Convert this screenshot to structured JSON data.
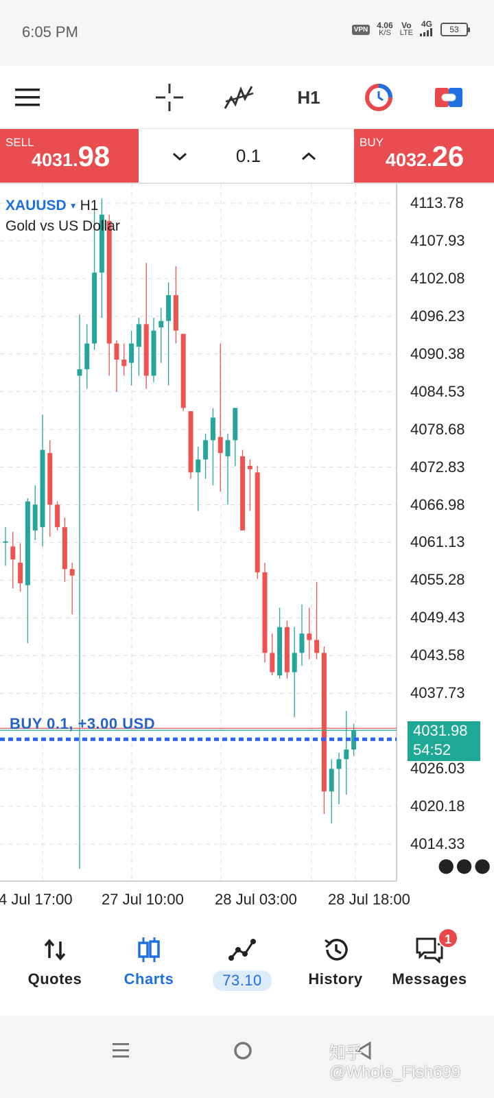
{
  "status_bar": {
    "time": "6:05 PM",
    "vpn": "VPN",
    "speed_value": "4.06",
    "speed_unit": "K/S",
    "network_a": "Vo",
    "network_a_sub": "LTE",
    "network_b": "4G",
    "battery": "53"
  },
  "toolbar": {
    "menu_icon": "hamburger-menu-icon",
    "crosshair_icon": "crosshair-icon",
    "indicators_icon": "indicators-icon",
    "timeframe": "H1",
    "chart_style_icon": "chart-style-icon",
    "trade_toggle_icon": "one-click-trading-icon"
  },
  "trade_bar": {
    "sell_label": "SELL",
    "sell_price_main": "4031.",
    "sell_price_big": "98",
    "lot": "0.1",
    "buy_label": "BUY",
    "buy_price_main": "4032.",
    "buy_price_big": "26",
    "colors": {
      "sell": "#ea4d50",
      "buy": "#ea4d50"
    }
  },
  "chart": {
    "symbol": "XAUUSD",
    "timeframe": "H1",
    "description": "Gold vs US Dollar",
    "position_label": "BUY 0.1,  +3.00 USD",
    "current_price": "4031.98",
    "countdown": "54:52",
    "more_icon": "more-dots-icon"
  },
  "chart_data": {
    "type": "candlestick",
    "symbol": "XAUUSD",
    "timeframe": "H1",
    "y_ticks": [
      "4113.78",
      "4107.93",
      "4102.08",
      "4096.23",
      "4090.38",
      "4084.53",
      "4078.68",
      "4072.83",
      "4066.98",
      "4061.13",
      "4055.28",
      "4049.43",
      "4043.58",
      "4037.73",
      "4026.03",
      "4020.18",
      "4014.33"
    ],
    "x_ticks": [
      "4 Jul 17:00",
      "27 Jul 10:00",
      "28 Jul 03:00",
      "28 Jul 18:00"
    ],
    "ylim": [
      4011.4,
      4116.7
    ],
    "grid": true,
    "colors": {
      "up": "#26a69a",
      "down": "#ef5350",
      "grid": "#dcdcdc",
      "position_line": "#2962ff"
    },
    "current_price": 4031.98,
    "position_price": 4030.6,
    "candles": [
      {
        "o": 4061.3,
        "h": 4063.5,
        "l": 4057.5,
        "c": 4061.3
      },
      {
        "o": 4060.5,
        "h": 4062.8,
        "l": 4054.0,
        "c": 4058.5
      },
      {
        "o": 4058.0,
        "h": 4061.0,
        "l": 4053.5,
        "c": 4054.8
      },
      {
        "o": 4054.5,
        "h": 4068.0,
        "l": 4045.5,
        "c": 4067.5
      },
      {
        "o": 4063.0,
        "h": 4070.0,
        "l": 4061.5,
        "c": 4067.0
      },
      {
        "o": 4063.5,
        "h": 4081.0,
        "l": 4060.5,
        "c": 4075.5
      },
      {
        "o": 4075.0,
        "h": 4077.0,
        "l": 4062.0,
        "c": 4067.0
      },
      {
        "o": 4067.0,
        "h": 4067.5,
        "l": 4063.0,
        "c": 4063.5
      },
      {
        "o": 4063.5,
        "h": 4065.0,
        "l": 4055.0,
        "c": 4057.0
      },
      {
        "o": 4057.0,
        "h": 4058.0,
        "l": 4050.0,
        "c": 4056.0
      },
      {
        "o": 4087.0,
        "h": 4096.5,
        "l": 4010.5,
        "c": 4088.0
      },
      {
        "o": 4088.0,
        "h": 4095.0,
        "l": 4085.0,
        "c": 4092.0
      },
      {
        "o": 4092.0,
        "h": 4113.0,
        "l": 4091.0,
        "c": 4103.0
      },
      {
        "o": 4103.0,
        "h": 4114.5,
        "l": 4096.0,
        "c": 4112.0
      },
      {
        "o": 4111.0,
        "h": 4112.0,
        "l": 4087.0,
        "c": 4092.0
      },
      {
        "o": 4092.0,
        "h": 4092.5,
        "l": 4084.5,
        "c": 4089.5
      },
      {
        "o": 4089.5,
        "h": 4092.0,
        "l": 4087.0,
        "c": 4088.5
      },
      {
        "o": 4089.0,
        "h": 4094.0,
        "l": 4085.5,
        "c": 4092.0
      },
      {
        "o": 4091.5,
        "h": 4096.0,
        "l": 4087.0,
        "c": 4095.0
      },
      {
        "o": 4095.0,
        "h": 4104.5,
        "l": 4085.0,
        "c": 4087.0
      },
      {
        "o": 4087.0,
        "h": 4096.0,
        "l": 4086.0,
        "c": 4094.0
      },
      {
        "o": 4094.5,
        "h": 4097.5,
        "l": 4089.0,
        "c": 4095.5
      },
      {
        "o": 4095.5,
        "h": 4101.5,
        "l": 4085.5,
        "c": 4099.5
      },
      {
        "o": 4099.5,
        "h": 4104.0,
        "l": 4092.0,
        "c": 4094.0
      },
      {
        "o": 4093.5,
        "h": 4093.5,
        "l": 4081.5,
        "c": 4082.0
      },
      {
        "o": 4081.5,
        "h": 4081.5,
        "l": 4071.0,
        "c": 4072.0
      },
      {
        "o": 4072.0,
        "h": 4076.0,
        "l": 4066.0,
        "c": 4074.0
      },
      {
        "o": 4074.0,
        "h": 4078.0,
        "l": 4071.0,
        "c": 4077.0
      },
      {
        "o": 4077.0,
        "h": 4082.0,
        "l": 4070.0,
        "c": 4080.5
      },
      {
        "o": 4077.5,
        "h": 4092.0,
        "l": 4069.0,
        "c": 4075.0
      },
      {
        "o": 4074.5,
        "h": 4078.0,
        "l": 4067.0,
        "c": 4077.0
      },
      {
        "o": 4077.0,
        "h": 4082.0,
        "l": 4073.0,
        "c": 4082.0
      },
      {
        "o": 4074.5,
        "h": 4075.5,
        "l": 4063.5,
        "c": 4063.0
      },
      {
        "o": 4073.0,
        "h": 4074.0,
        "l": 4066.0,
        "c": 4072.5
      },
      {
        "o": 4072.0,
        "h": 4073.0,
        "l": 4055.5,
        "c": 4056.5
      },
      {
        "o": 4056.5,
        "h": 4058.0,
        "l": 4042.5,
        "c": 4044.0
      },
      {
        "o": 4044.0,
        "h": 4047.0,
        "l": 4040.5,
        "c": 4041.0
      },
      {
        "o": 4040.5,
        "h": 4051.0,
        "l": 4040.0,
        "c": 4048.0
      },
      {
        "o": 4048.0,
        "h": 4049.0,
        "l": 4040.0,
        "c": 4041.0
      },
      {
        "o": 4041.0,
        "h": 4048.0,
        "l": 4034.0,
        "c": 4044.0
      },
      {
        "o": 4044.0,
        "h": 4051.5,
        "l": 4042.0,
        "c": 4047.0
      },
      {
        "o": 4047.0,
        "h": 4051.0,
        "l": 4043.0,
        "c": 4046.0
      },
      {
        "o": 4046.0,
        "h": 4055.0,
        "l": 4043.0,
        "c": 4044.0
      },
      {
        "o": 4044.0,
        "h": 4045.0,
        "l": 4019.0,
        "c": 4022.5
      },
      {
        "o": 4022.5,
        "h": 4027.5,
        "l": 4017.5,
        "c": 4026.0
      },
      {
        "o": 4026.0,
        "h": 4028.5,
        "l": 4020.5,
        "c": 4027.5
      },
      {
        "o": 4027.5,
        "h": 4035.0,
        "l": 4022.0,
        "c": 4029.0
      },
      {
        "o": 4029.0,
        "h": 4033.0,
        "l": 4028.0,
        "c": 4031.98
      }
    ]
  },
  "bottom_nav": {
    "quotes": "Quotes",
    "charts": "Charts",
    "trade_value": "73.10",
    "history": "History",
    "messages": "Messages",
    "messages_badge": "1",
    "active_color": "#1e6fe0"
  },
  "system_nav": {
    "watermark": "知乎 @Whole_Fish699"
  }
}
